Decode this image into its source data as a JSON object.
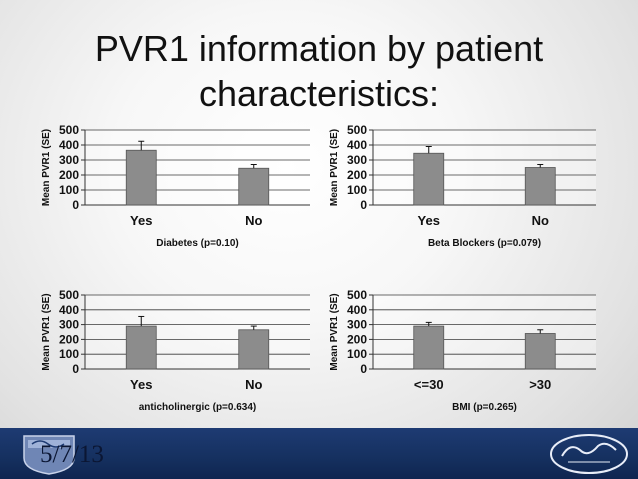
{
  "slide": {
    "title_line1": "PVR1 information by patient",
    "title_line2": "characteristics:",
    "footer_date": "5/7/13"
  },
  "colors": {
    "bar": "#8c8c8c",
    "bar_stroke": "#555555",
    "footer": "#1b3a73"
  },
  "chart_data": [
    {
      "type": "bar",
      "categories": [
        "Yes",
        "No"
      ],
      "values": [
        365,
        245
      ],
      "errors": [
        60,
        25
      ],
      "xlabel": "Diabetes (p=0.10)",
      "ylabel": "Mean PVR1 (SE)",
      "ylim": [
        0,
        500
      ],
      "yticks": [
        0,
        100,
        200,
        300,
        400,
        500
      ],
      "grid": true
    },
    {
      "type": "bar",
      "categories": [
        "Yes",
        "No"
      ],
      "values": [
        345,
        250
      ],
      "errors": [
        45,
        20
      ],
      "xlabel": "Beta Blockers (p=0.079)",
      "ylabel": "Mean PVR1 (SE)",
      "ylim": [
        0,
        500
      ],
      "yticks": [
        0,
        100,
        200,
        300,
        400,
        500
      ],
      "grid": true
    },
    {
      "type": "bar",
      "categories": [
        "Yes",
        "No"
      ],
      "values": [
        290,
        265
      ],
      "errors": [
        65,
        25
      ],
      "xlabel": "anticholinergic (p=0.634)",
      "ylabel": "Mean PVR1 (SE)",
      "ylim": [
        0,
        500
      ],
      "yticks": [
        0,
        100,
        200,
        300,
        400,
        500
      ],
      "grid": true
    },
    {
      "type": "bar",
      "categories": [
        "<=30",
        ">30"
      ],
      "values": [
        290,
        240
      ],
      "errors": [
        25,
        25
      ],
      "xlabel": "BMI (p=0.265)",
      "ylabel": "Mean PVR1 (SE)",
      "ylim": [
        0,
        500
      ],
      "yticks": [
        0,
        100,
        200,
        300,
        400,
        500
      ],
      "grid": true
    }
  ]
}
